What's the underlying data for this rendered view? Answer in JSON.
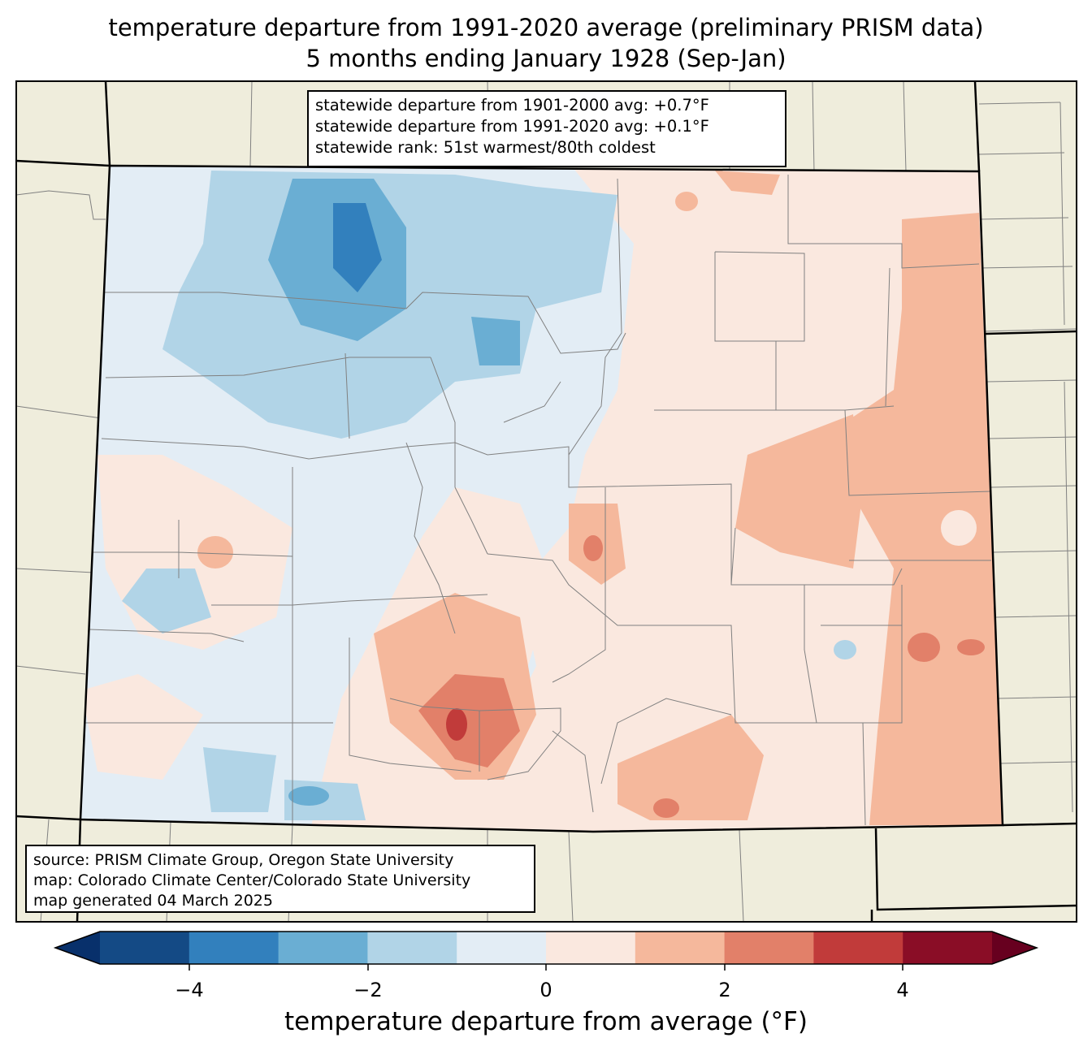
{
  "title": {
    "line1": "temperature departure from 1991-2020 average (preliminary PRISM data)",
    "line2": "5 months ending January 1928 (Sep-Jan)"
  },
  "stats": {
    "line1": "statewide departure from 1901-2000 avg: +0.7°F",
    "line2": "statewide departure from 1991-2020 avg: +0.1°F",
    "line3": "statewide rank: 51st warmest/80th coldest"
  },
  "source": {
    "line1": "source: PRISM Climate Group, Oregon State University",
    "line2": "map: Colorado Climate Center/Colorado State University",
    "line3": "map generated 04 March 2025"
  },
  "colorbar": {
    "label": "temperature departure from average (°F)",
    "ticks": [
      "−4",
      "−2",
      "0",
      "2",
      "4"
    ],
    "colors": [
      "#08306b",
      "#144a85",
      "#3280bd",
      "#6aaed3",
      "#b1d4e7",
      "#e3edf5",
      "#fae8df",
      "#f5b89c",
      "#e28069",
      "#c13b3a",
      "#8a0d26",
      "#67001f"
    ]
  },
  "colors": {
    "land_background": "#efeddc",
    "county_lines": "#808080",
    "state_border": "#000000"
  }
}
